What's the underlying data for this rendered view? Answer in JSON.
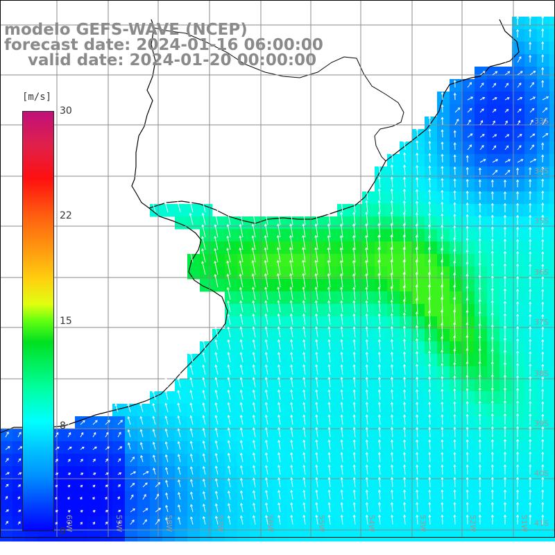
{
  "header": {
    "line1": "modelo GEFS-WAVE (NCEP)",
    "line2": "forecast date: 2024-01-16 06:00:00",
    "line3": "valid date: 2024-01-20 00:00:00"
  },
  "colorbar": {
    "unit": "[m/s]",
    "ticks": [
      "30",
      "22",
      "15",
      "8",
      "0"
    ],
    "colors": [
      "#c0107a",
      "#ff1010",
      "#ff9a10",
      "#ffd010",
      "#00e020",
      "#00ffff",
      "#0040ff",
      "#0000ff"
    ]
  },
  "map": {
    "longitude_labels": [
      "60W",
      "59W",
      "58W",
      "57W",
      "56W",
      "55W",
      "54W",
      "53W",
      "52W",
      "51W"
    ],
    "latitude_labels": [
      "33S",
      "34S",
      "35S",
      "36S",
      "37S",
      "38S",
      "39S",
      "40S",
      "41S"
    ],
    "land_color": "#ffffff",
    "grid_color": "#8a8a8a",
    "coast_color": "#000000",
    "arrow_color": "#ffffff"
  }
}
